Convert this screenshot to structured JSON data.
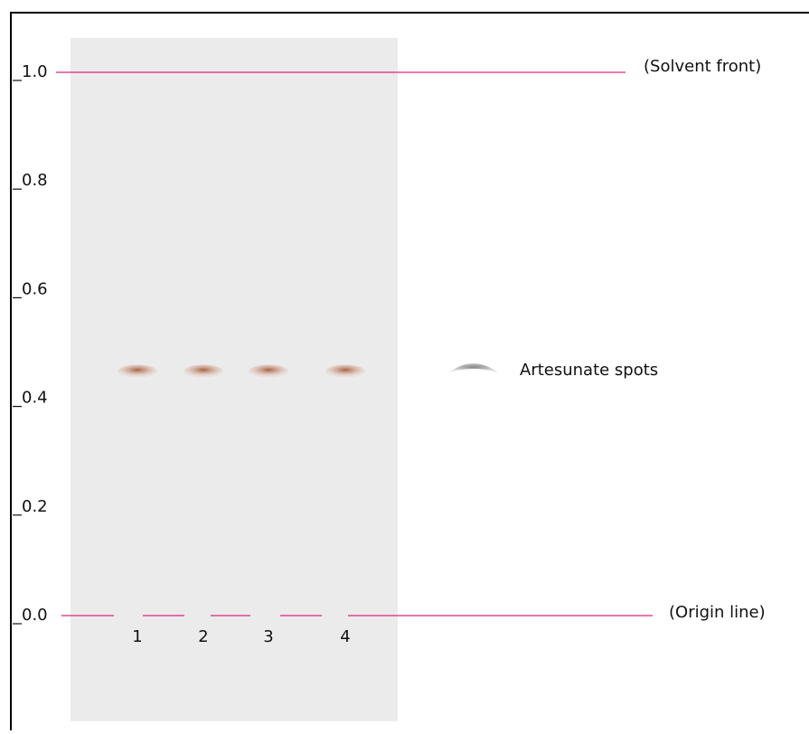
{
  "scale": {
    "ylim": [
      0,
      1
    ],
    "ticks": [
      {
        "value": 0,
        "label": "0.0"
      },
      {
        "value": 0.2,
        "label": "0.2"
      },
      {
        "value": 0.4,
        "label": "0.4"
      },
      {
        "value": 0.6,
        "label": "0.6"
      },
      {
        "value": 0.8,
        "label": "0.8"
      },
      {
        "value": 1,
        "label": "1.0"
      }
    ]
  },
  "lanes": [
    {
      "label": "1",
      "rf": 0.45
    },
    {
      "label": "2",
      "rf": 0.45
    },
    {
      "label": "3",
      "rf": 0.45
    },
    {
      "label": "4",
      "rf": 0.45
    }
  ],
  "annotations": {
    "solvent_front": "(Solvent front)",
    "origin_line": "(Origin line)",
    "spots": "Artesunate spots"
  }
}
